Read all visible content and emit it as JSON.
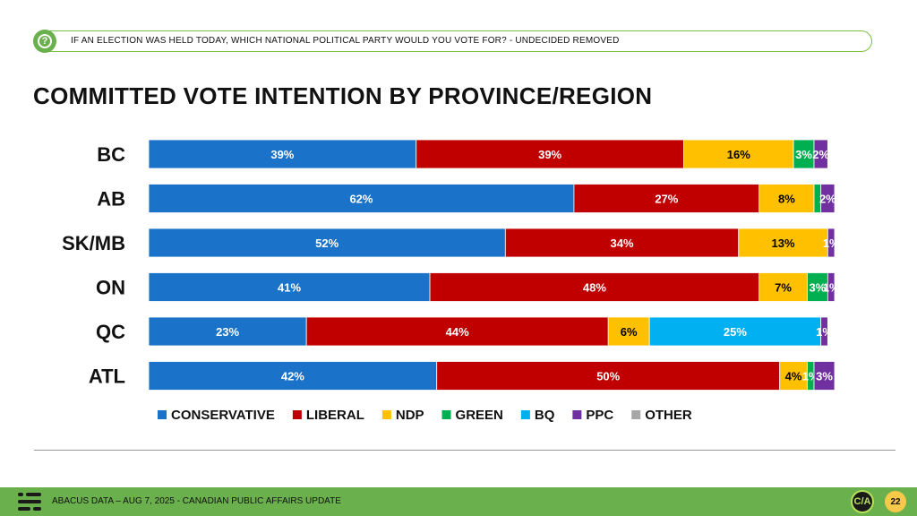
{
  "question": {
    "icon": "question-icon",
    "text": "IF AN ELECTION WAS HELD TODAY, WHICH NATIONAL POLITICAL PARTY WOULD YOU VOTE FOR? - UNDECIDED REMOVED"
  },
  "title": "COMMITTED VOTE INTENTION BY PROVINCE/REGION",
  "chart_data": {
    "type": "bar",
    "orientation": "horizontal",
    "stacked": true,
    "categories": [
      "BC",
      "AB",
      "SK/MB",
      "ON",
      "QC",
      "ATL"
    ],
    "series": [
      {
        "name": "CONSERVATIVE",
        "color": "#1a73c8",
        "values": [
          39,
          62,
          52,
          41,
          23,
          42
        ]
      },
      {
        "name": "LIBERAL",
        "color": "#c00000",
        "values": [
          39,
          27,
          34,
          48,
          44,
          50
        ]
      },
      {
        "name": "NDP",
        "color": "#ffc000",
        "values": [
          16,
          8,
          13,
          7,
          6,
          4
        ]
      },
      {
        "name": "GREEN",
        "color": "#00b050",
        "values": [
          3,
          1,
          0,
          3,
          0,
          1
        ]
      },
      {
        "name": "BQ",
        "color": "#00b0f0",
        "values": [
          0,
          0,
          0,
          0,
          25,
          0
        ]
      },
      {
        "name": "PPC",
        "color": "#7030a0",
        "values": [
          2,
          2,
          1,
          1,
          1,
          3
        ]
      },
      {
        "name": "OTHER",
        "color": "#a6a6a6",
        "values": [
          0,
          0,
          0,
          0,
          0,
          0
        ]
      }
    ],
    "data_labels": [
      [
        "39%",
        "39%",
        "16%",
        "3%",
        "",
        "2%",
        ""
      ],
      [
        "62%",
        "27%",
        "8%",
        "",
        "",
        "2%",
        ""
      ],
      [
        "52%",
        "34%",
        "13%",
        "",
        "",
        "1%",
        ""
      ],
      [
        "41%",
        "48%",
        "7%",
        "3%",
        "",
        "1%",
        ""
      ],
      [
        "23%",
        "44%",
        "6%",
        "",
        "25%",
        "1%",
        ""
      ],
      [
        "42%",
        "50%",
        "4%",
        "1%",
        "",
        "3%",
        ""
      ]
    ],
    "label_text_colors": [
      "#ffffff",
      "#ffffff",
      "#000000",
      "#ffffff",
      "#ffffff",
      "#ffffff",
      "#000000"
    ],
    "xlim": [
      0,
      100
    ],
    "grid": false,
    "legend": "bottom"
  },
  "footer": {
    "text": "ABACUS DATA – AUG 7, 2025 - CANADIAN PUBLIC AFFAIRS UPDATE",
    "brand_badge": "C/A",
    "page_number": "22"
  }
}
